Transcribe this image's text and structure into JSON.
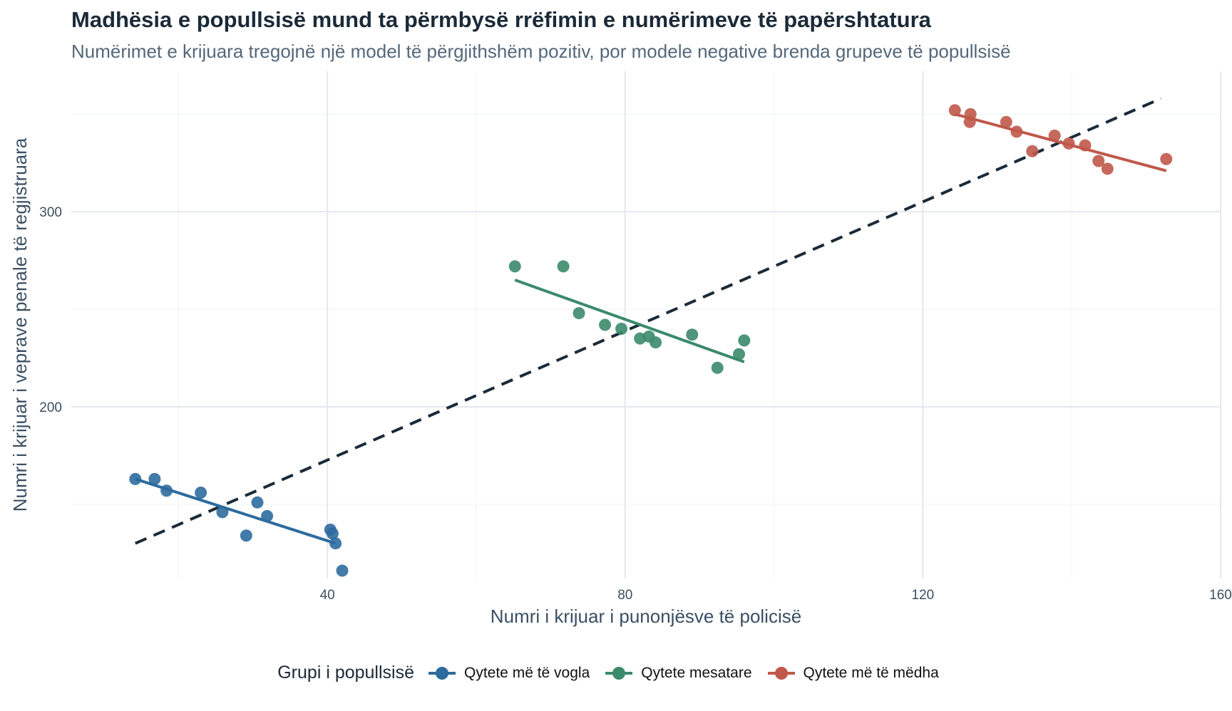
{
  "title": "Madhësia e popullsisë mund ta përmbysë rrëfimin e numërimeve të papërshtatura",
  "subtitle": "Numërimet e krijuara tregojnë një model të përgjithshëm pozitiv, por modele negative brenda grupeve të popullsisë",
  "chart_data": {
    "type": "scatter",
    "xlabel": "Numri i krijuar i punonjësve të policisë",
    "ylabel": "Numri i krijuar i veprave penale të regjistruara",
    "xlim": [
      5.6,
      160
    ],
    "ylim": [
      112,
      372
    ],
    "x_ticks": [
      40,
      80,
      120,
      160
    ],
    "y_ticks": [
      200,
      300
    ],
    "grid": true,
    "legend_title": "Grupi i popullsisë",
    "legend_position": "bottom",
    "series": [
      {
        "name": "Qytete më të vogla",
        "color": "#2d6b9e",
        "points": [
          {
            "x": 14.2,
            "y": 163
          },
          {
            "x": 16.8,
            "y": 163
          },
          {
            "x": 18.4,
            "y": 157
          },
          {
            "x": 23.0,
            "y": 156
          },
          {
            "x": 25.9,
            "y": 146
          },
          {
            "x": 29.1,
            "y": 134
          },
          {
            "x": 30.6,
            "y": 151
          },
          {
            "x": 31.9,
            "y": 144
          },
          {
            "x": 40.4,
            "y": 137
          },
          {
            "x": 40.7,
            "y": 135
          },
          {
            "x": 41.1,
            "y": 130
          },
          {
            "x": 42.0,
            "y": 116
          }
        ],
        "trend": {
          "x1": 14.2,
          "y1": 163,
          "x2": 41.1,
          "y2": 130
        }
      },
      {
        "name": "Qytete mesatare",
        "color": "#3b8a6b",
        "points": [
          {
            "x": 65.2,
            "y": 272
          },
          {
            "x": 71.7,
            "y": 272
          },
          {
            "x": 73.8,
            "y": 248
          },
          {
            "x": 77.3,
            "y": 242
          },
          {
            "x": 79.5,
            "y": 240
          },
          {
            "x": 82.0,
            "y": 235
          },
          {
            "x": 83.2,
            "y": 236
          },
          {
            "x": 84.1,
            "y": 233
          },
          {
            "x": 89.0,
            "y": 237
          },
          {
            "x": 92.4,
            "y": 220
          },
          {
            "x": 95.3,
            "y": 227
          },
          {
            "x": 96.0,
            "y": 234
          }
        ],
        "trend": {
          "x1": 65.2,
          "y1": 265,
          "x2": 96.0,
          "y2": 223
        }
      },
      {
        "name": "Qytete më të mëdha",
        "color": "#c0584a",
        "points": [
          {
            "x": 124.3,
            "y": 352
          },
          {
            "x": 126.3,
            "y": 346
          },
          {
            "x": 126.4,
            "y": 350
          },
          {
            "x": 131.2,
            "y": 346
          },
          {
            "x": 132.6,
            "y": 341
          },
          {
            "x": 134.7,
            "y": 331
          },
          {
            "x": 137.7,
            "y": 339
          },
          {
            "x": 139.6,
            "y": 335
          },
          {
            "x": 141.8,
            "y": 334
          },
          {
            "x": 143.6,
            "y": 326
          },
          {
            "x": 144.8,
            "y": 322
          },
          {
            "x": 152.7,
            "y": 327
          }
        ],
        "trend": {
          "x1": 124.3,
          "y1": 350,
          "x2": 152.7,
          "y2": 321
        }
      }
    ],
    "overall_trend": {
      "x1": 14.2,
      "y1": 130,
      "x2": 152.0,
      "y2": 358,
      "style": "dashed",
      "color": "#1b2a38"
    }
  }
}
